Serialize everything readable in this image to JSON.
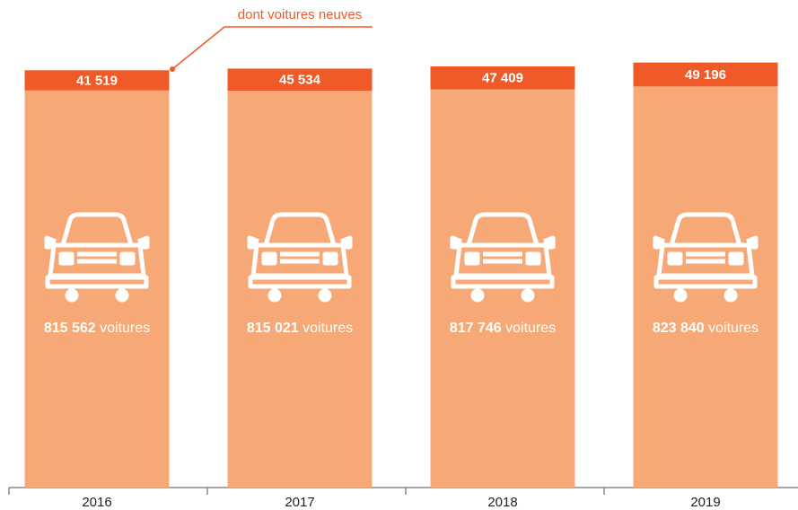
{
  "chart_data": {
    "type": "stacked_bar",
    "annotation": "dont voitures neuves",
    "categories": [
      "2016",
      "2017",
      "2018",
      "2019"
    ],
    "series": [
      {
        "name": "voitures",
        "color": "#f7a877",
        "values": [
          815562,
          815021,
          817746,
          823840
        ],
        "value_labels": [
          "815 562",
          "815 021",
          "817 746",
          "823 840"
        ]
      },
      {
        "name": "dont voitures neuves",
        "color": "#f05a28",
        "values": [
          41519,
          45534,
          47409,
          49196
        ],
        "value_labels": [
          "41 519",
          "45 534",
          "47 409",
          "49 196"
        ]
      }
    ],
    "ylim": [
      0,
      900000
    ]
  }
}
